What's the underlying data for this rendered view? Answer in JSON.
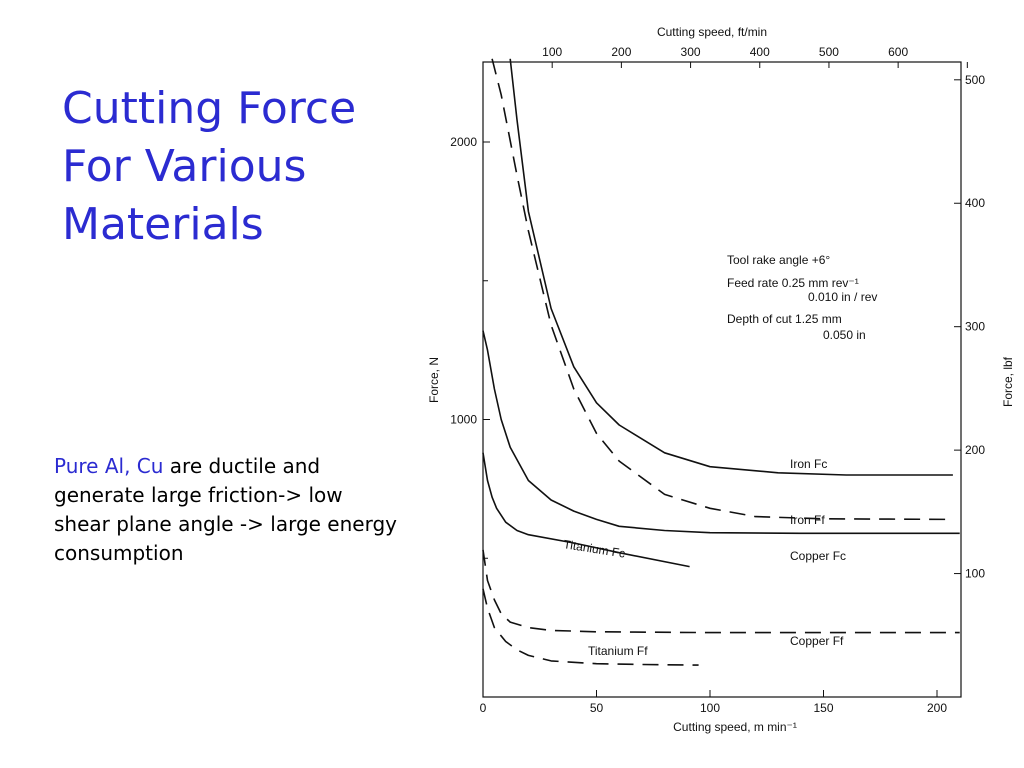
{
  "slide": {
    "title_lines": [
      "Cutting Force",
      "For Various",
      "Materials"
    ],
    "body_highlight": "Pure Al, Cu",
    "body_rest": " are ductile and generate large friction-> low shear plane angle -> large energy consumption"
  },
  "chart_data": {
    "type": "line",
    "title": "",
    "xlabel": "Cutting speed, m min⁻¹",
    "ylabel": "Force, N",
    "x2label": "Cutting speed, ft/min",
    "y2label": "Force, lbf",
    "xlim": [
      0,
      212
    ],
    "ylim": [
      0,
      2300
    ],
    "x_ticks": [
      0,
      50,
      100,
      150,
      200
    ],
    "y_ticks_labeled": [
      1000,
      2000
    ],
    "y_ticks_minor": [
      0,
      500,
      1500
    ],
    "x2_ticks": [
      100,
      200,
      300,
      400,
      500,
      600
    ],
    "x2_ticks_minor": [
      700
    ],
    "y2_ticks": [
      100,
      200,
      300,
      400,
      500
    ],
    "grid": false,
    "colors": {
      "title": "#2b2bd1",
      "highlight": "#2b2bd1",
      "axis": "#111111"
    },
    "annotation_lines": [
      "Tool rake angle +6°",
      "Feed rate  0.25 mm rev⁻¹",
      "0.010 in / rev",
      "Depth of cut  1.25 mm",
      "0.050 in"
    ],
    "series": [
      {
        "name": "Iron Fc",
        "dash": "solid",
        "x": [
          12,
          15,
          20,
          30,
          40,
          50,
          60,
          80,
          100,
          130,
          160,
          207
        ],
        "y": [
          2300,
          2080,
          1750,
          1400,
          1190,
          1060,
          980,
          880,
          830,
          808,
          800,
          800
        ]
      },
      {
        "name": "Iron Ff",
        "dash": "dashed",
        "x": [
          4,
          8,
          15,
          20,
          30,
          40,
          50,
          60,
          80,
          100,
          120,
          150,
          207
        ],
        "y": [
          2300,
          2170,
          1880,
          1680,
          1340,
          1110,
          950,
          850,
          730,
          680,
          650,
          642,
          640
        ]
      },
      {
        "name": "Copper Fc",
        "dash": "solid",
        "x": [
          0,
          2,
          5,
          8,
          12,
          20,
          30,
          40,
          50,
          60,
          80,
          100,
          140,
          210
        ],
        "y": [
          1320,
          1250,
          1110,
          1000,
          900,
          780,
          710,
          670,
          640,
          615,
          600,
          592,
          590,
          590
        ]
      },
      {
        "name": "Titanium Fc",
        "dash": "solid",
        "x": [
          0,
          2,
          4,
          6,
          10,
          15,
          20,
          40,
          60,
          91
        ],
        "y": [
          880,
          780,
          720,
          680,
          630,
          600,
          585,
          555,
          520,
          470
        ]
      },
      {
        "name": "Copper Ff",
        "dash": "dashed",
        "x": [
          0,
          2,
          5,
          8,
          12,
          20,
          30,
          50,
          100,
          150,
          210
        ],
        "y": [
          530,
          420,
          350,
          300,
          270,
          250,
          240,
          235,
          232,
          232,
          232
        ]
      },
      {
        "name": "Titanium Ff",
        "dash": "dashed",
        "x": [
          0,
          2,
          5,
          10,
          15,
          20,
          30,
          50,
          70,
          95
        ],
        "y": [
          390,
          320,
          250,
          200,
          170,
          150,
          130,
          120,
          117,
          115
        ]
      }
    ],
    "series_labels": [
      {
        "series": "Iron Fc",
        "text": "Iron  Fc"
      },
      {
        "series": "Iron Ff",
        "text": "Iron  Ff"
      },
      {
        "series": "Copper Fc",
        "text": "Copper  Fc"
      },
      {
        "series": "Titanium Fc",
        "text": "Titanium  Fc"
      },
      {
        "series": "Copper Ff",
        "text": "Copper  Ff"
      },
      {
        "series": "Titanium Ff",
        "text": "Titanium  Ff"
      }
    ]
  }
}
